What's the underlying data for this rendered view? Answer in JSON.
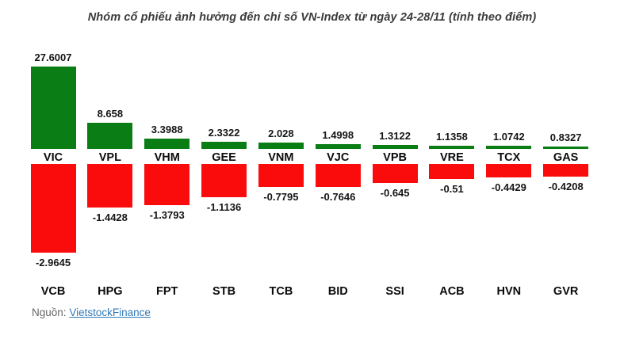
{
  "chart_data": {
    "type": "bar",
    "title": "Nhóm cổ phiếu ảnh hưởng đến chỉ số VN-Index từ ngày 24-28/11 (tính theo điểm)",
    "orientation": "vertical",
    "grid": false,
    "legend": false,
    "value_labels": true,
    "series": [
      {
        "name": "gainers",
        "color": "#0a7d14",
        "categories": [
          "VIC",
          "VPL",
          "VHM",
          "GEE",
          "VNM",
          "VJC",
          "VPB",
          "VRE",
          "TCX",
          "GAS"
        ],
        "values": [
          27.6007,
          8.658,
          3.3988,
          2.3322,
          2.028,
          1.4998,
          1.3122,
          1.1358,
          1.0742,
          0.8327
        ]
      },
      {
        "name": "losers",
        "color": "#fb0c0c",
        "categories": [
          "VCB",
          "HPG",
          "FPT",
          "STB",
          "TCB",
          "BID",
          "SSI",
          "ACB",
          "HVN",
          "GVR"
        ],
        "values": [
          -2.9645,
          -1.4428,
          -1.3793,
          -1.1136,
          -0.7795,
          -0.7646,
          -0.645,
          -0.51,
          -0.4429,
          -0.4208
        ]
      }
    ]
  },
  "source": {
    "label": "Nguồn:",
    "link_text": "VietstockFinance",
    "link_color": "#337ab7"
  }
}
